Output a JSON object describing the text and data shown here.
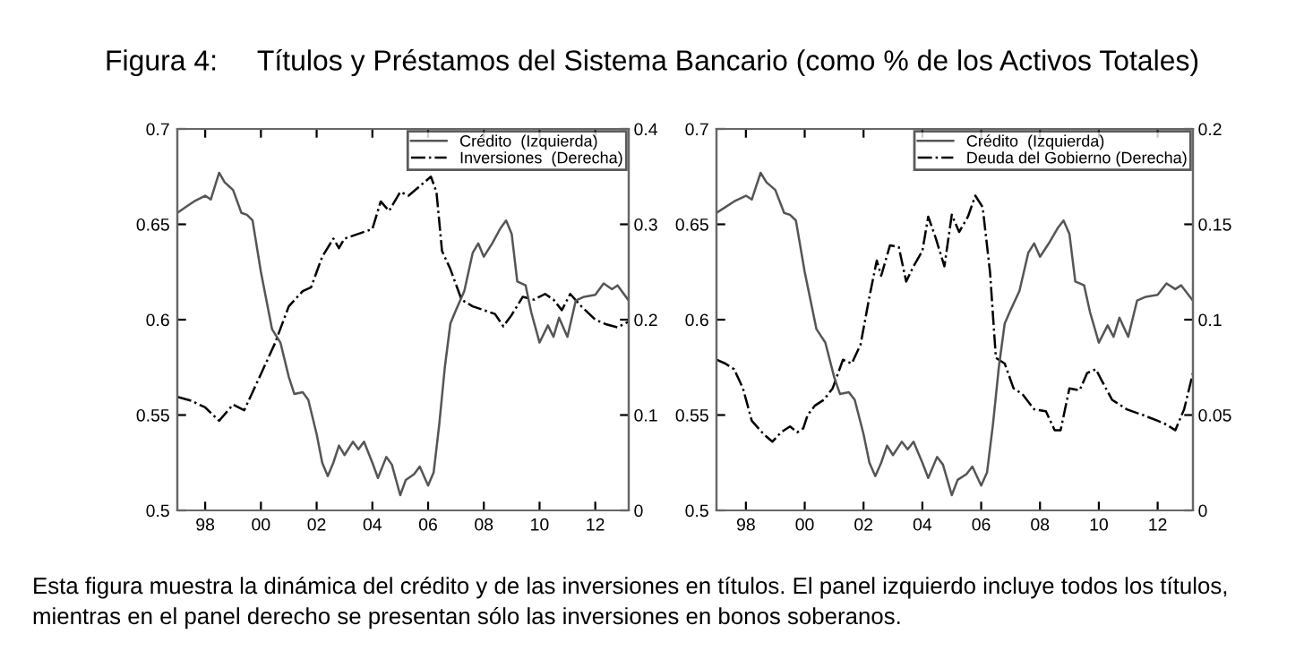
{
  "chart_data": [
    {
      "type": "line",
      "title": "Figura 4:     Títulos y Préstamos del Sistema Bancario (como % de los Activos Totales)",
      "xlim": [
        1997,
        2013.2
      ],
      "xticks": [
        {
          "value": 1998,
          "label": "98"
        },
        {
          "value": 2000,
          "label": "00"
        },
        {
          "value": 2002,
          "label": "02"
        },
        {
          "value": 2004,
          "label": "04"
        },
        {
          "value": 2006,
          "label": "06"
        },
        {
          "value": 2008,
          "label": "08"
        },
        {
          "value": 2010,
          "label": "10"
        },
        {
          "value": 2012,
          "label": "12"
        }
      ],
      "ylim": [
        0.5,
        0.7
      ],
      "yticks": [
        0.5,
        0.55,
        0.6,
        0.65,
        0.7
      ],
      "y2lim": [
        0,
        0.4
      ],
      "y2ticks": [
        0,
        0.1,
        0.2,
        0.3,
        0.4
      ],
      "legend": "top right",
      "grid": false,
      "series": [
        {
          "name": "Crédito  (Izquierda)",
          "color": "#555555",
          "line_style": "solid",
          "x": [
            1997.0,
            1997.3,
            1997.6,
            1998.0,
            1998.2,
            1998.5,
            1998.7,
            1999.0,
            1999.3,
            1999.5,
            1999.7,
            2000.0,
            2000.2,
            2000.4,
            2000.7,
            2001.0,
            2001.2,
            2001.5,
            2001.7,
            2002.0,
            2002.2,
            2002.4,
            2002.6,
            2002.8,
            2003.0,
            2003.3,
            2003.5,
            2003.7,
            2004.0,
            2004.2,
            2004.5,
            2004.7,
            2005.0,
            2005.2,
            2005.5,
            2005.7,
            2006.0,
            2006.2,
            2006.4,
            2006.6,
            2006.8,
            2007.0,
            2007.3,
            2007.6,
            2007.8,
            2008.0,
            2008.3,
            2008.6,
            2008.8,
            2009.0,
            2009.2,
            2009.5,
            2009.7,
            2010.0,
            2010.3,
            2010.5,
            2010.7,
            2011.0,
            2011.3,
            2011.6,
            2012.0,
            2012.3,
            2012.6,
            2012.8,
            2013.2
          ],
          "values": [
            0.656,
            0.659,
            0.662,
            0.665,
            0.663,
            0.677,
            0.672,
            0.668,
            0.656,
            0.655,
            0.652,
            0.625,
            0.61,
            0.595,
            0.588,
            0.57,
            0.561,
            0.562,
            0.558,
            0.54,
            0.525,
            0.518,
            0.525,
            0.534,
            0.529,
            0.536,
            0.532,
            0.536,
            0.525,
            0.517,
            0.528,
            0.524,
            0.508,
            0.516,
            0.519,
            0.523,
            0.513,
            0.52,
            0.545,
            0.575,
            0.598,
            0.605,
            0.615,
            0.635,
            0.64,
            0.633,
            0.64,
            0.648,
            0.652,
            0.645,
            0.62,
            0.618,
            0.604,
            0.588,
            0.597,
            0.591,
            0.601,
            0.591,
            0.61,
            0.612,
            0.613,
            0.619,
            0.616,
            0.618,
            0.61
          ]
        },
        {
          "name": "Inversiones  (Derecha)",
          "color": "#000000",
          "line_style": "dashed",
          "axis": "y2",
          "x": [
            1997.0,
            1997.5,
            1998.0,
            1998.5,
            1999.0,
            1999.4,
            1999.7,
            2000.0,
            2000.5,
            2001.0,
            2001.5,
            2001.8,
            2002.2,
            2002.6,
            2002.8,
            2003.0,
            2003.5,
            2004.0,
            2004.3,
            2004.6,
            2005.0,
            2005.3,
            2005.7,
            2006.1,
            2006.3,
            2006.5,
            2006.8,
            2007.2,
            2007.6,
            2008.0,
            2008.4,
            2008.7,
            2009.0,
            2009.4,
            2009.8,
            2010.2,
            2010.5,
            2010.8,
            2011.1,
            2011.5,
            2012.0,
            2012.4,
            2012.8,
            2013.2
          ],
          "values": [
            0.119,
            0.115,
            0.108,
            0.094,
            0.111,
            0.105,
            0.124,
            0.143,
            0.175,
            0.214,
            0.23,
            0.234,
            0.266,
            0.285,
            0.275,
            0.285,
            0.29,
            0.295,
            0.324,
            0.314,
            0.334,
            0.33,
            0.34,
            0.35,
            0.334,
            0.272,
            0.253,
            0.221,
            0.214,
            0.21,
            0.206,
            0.193,
            0.205,
            0.224,
            0.221,
            0.227,
            0.221,
            0.21,
            0.227,
            0.214,
            0.2,
            0.195,
            0.192,
            0.198
          ]
        }
      ]
    },
    {
      "type": "line",
      "xlim": [
        1997,
        2013.2
      ],
      "xticks": [
        {
          "value": 1998,
          "label": "98"
        },
        {
          "value": 2000,
          "label": "00"
        },
        {
          "value": 2002,
          "label": "02"
        },
        {
          "value": 2004,
          "label": "04"
        },
        {
          "value": 2006,
          "label": "06"
        },
        {
          "value": 2008,
          "label": "08"
        },
        {
          "value": 2010,
          "label": "10"
        },
        {
          "value": 2012,
          "label": "12"
        }
      ],
      "ylim": [
        0.5,
        0.7
      ],
      "yticks": [
        0.5,
        0.55,
        0.6,
        0.65,
        0.7
      ],
      "y2lim": [
        0,
        0.2
      ],
      "y2ticks": [
        0,
        0.05,
        0.1,
        0.15,
        0.2
      ],
      "legend": "top right",
      "grid": false,
      "annotations": [
        "Esta figura muestra la dinámica del crédito y de las inversiones en títulos. El panel izquierdo incluye todos los títulos, mientras en el panel derecho se presentan sólo las inversiones en bonos soberanos."
      ],
      "series": [
        {
          "name": "Crédito  (Izquierda)",
          "color": "#555555",
          "line_style": "solid",
          "x": [
            1997.0,
            1997.3,
            1997.6,
            1998.0,
            1998.2,
            1998.5,
            1998.7,
            1999.0,
            1999.3,
            1999.5,
            1999.7,
            2000.0,
            2000.2,
            2000.4,
            2000.7,
            2001.0,
            2001.2,
            2001.5,
            2001.7,
            2002.0,
            2002.2,
            2002.4,
            2002.6,
            2002.8,
            2003.0,
            2003.3,
            2003.5,
            2003.7,
            2004.0,
            2004.2,
            2004.5,
            2004.7,
            2005.0,
            2005.2,
            2005.5,
            2005.7,
            2006.0,
            2006.2,
            2006.4,
            2006.6,
            2006.8,
            2007.0,
            2007.3,
            2007.6,
            2007.8,
            2008.0,
            2008.3,
            2008.6,
            2008.8,
            2009.0,
            2009.2,
            2009.5,
            2009.7,
            2010.0,
            2010.3,
            2010.5,
            2010.7,
            2011.0,
            2011.3,
            2011.6,
            2012.0,
            2012.3,
            2012.6,
            2012.8,
            2013.2
          ],
          "values": [
            0.656,
            0.659,
            0.662,
            0.665,
            0.663,
            0.677,
            0.672,
            0.668,
            0.656,
            0.655,
            0.652,
            0.625,
            0.61,
            0.595,
            0.588,
            0.57,
            0.561,
            0.562,
            0.558,
            0.54,
            0.525,
            0.518,
            0.525,
            0.534,
            0.529,
            0.536,
            0.532,
            0.536,
            0.525,
            0.517,
            0.528,
            0.524,
            0.508,
            0.516,
            0.519,
            0.523,
            0.513,
            0.52,
            0.545,
            0.575,
            0.598,
            0.605,
            0.615,
            0.635,
            0.64,
            0.633,
            0.64,
            0.648,
            0.652,
            0.645,
            0.62,
            0.618,
            0.604,
            0.588,
            0.597,
            0.591,
            0.601,
            0.591,
            0.61,
            0.612,
            0.613,
            0.619,
            0.616,
            0.618,
            0.61
          ]
        },
        {
          "name": "Deuda del Gobierno (Derecha)",
          "color": "#000000",
          "line_style": "dashed",
          "axis": "y2",
          "x": [
            1997.0,
            1997.3,
            1997.6,
            1997.9,
            1998.2,
            1998.6,
            1998.9,
            1999.2,
            1999.5,
            1999.75,
            1999.95,
            2000.1,
            2000.35,
            2000.65,
            2000.95,
            2001.3,
            2001.6,
            2001.9,
            2002.2,
            2002.45,
            2002.6,
            2002.9,
            2003.2,
            2003.45,
            2003.7,
            2004.0,
            2004.2,
            2004.45,
            2004.75,
            2005.0,
            2005.25,
            2005.55,
            2005.8,
            2006.05,
            2006.3,
            2006.5,
            2006.8,
            2007.1,
            2007.4,
            2007.8,
            2008.2,
            2008.5,
            2008.7,
            2009.0,
            2009.35,
            2009.6,
            2009.9,
            2010.1,
            2010.45,
            2010.95,
            2011.5,
            2012.0,
            2012.3,
            2012.6,
            2012.9,
            2013.2
          ],
          "values": [
            0.079,
            0.077,
            0.074,
            0.064,
            0.047,
            0.04,
            0.036,
            0.041,
            0.044,
            0.041,
            0.043,
            0.05,
            0.055,
            0.058,
            0.064,
            0.079,
            0.077,
            0.087,
            0.112,
            0.131,
            0.123,
            0.139,
            0.138,
            0.12,
            0.128,
            0.136,
            0.154,
            0.143,
            0.128,
            0.155,
            0.146,
            0.154,
            0.165,
            0.159,
            0.125,
            0.08,
            0.077,
            0.064,
            0.061,
            0.053,
            0.052,
            0.042,
            0.042,
            0.064,
            0.063,
            0.072,
            0.074,
            0.068,
            0.058,
            0.053,
            0.05,
            0.047,
            0.045,
            0.042,
            0.053,
            0.072
          ]
        }
      ]
    }
  ]
}
